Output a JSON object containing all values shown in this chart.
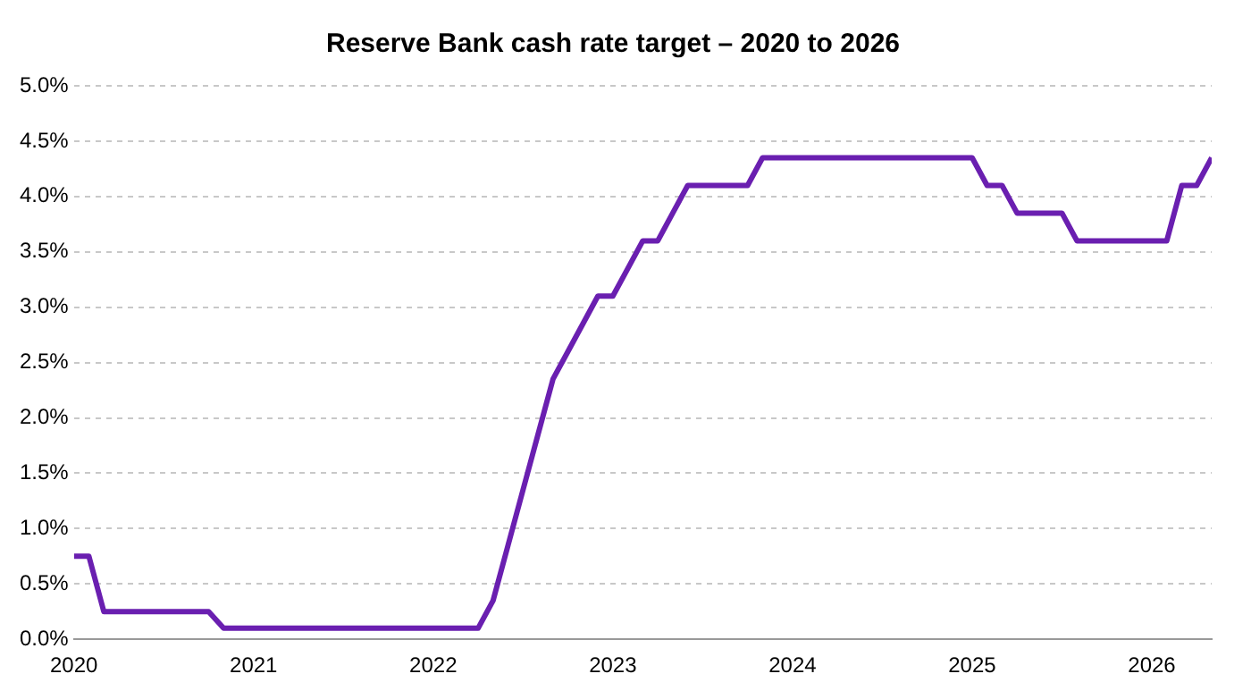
{
  "chart_data": {
    "type": "line",
    "title": "Reserve Bank cash rate target – 2020 to 2026",
    "x": [
      "2020-01",
      "2020-02",
      "2020-03",
      "2020-10",
      "2020-11",
      "2022-04",
      "2022-05",
      "2022-06",
      "2022-07",
      "2022-08",
      "2022-09",
      "2022-10",
      "2022-11",
      "2022-12",
      "2023-01",
      "2023-02",
      "2023-03",
      "2023-04",
      "2023-05",
      "2023-06",
      "2023-10",
      "2023-11",
      "2025-01",
      "2025-02",
      "2025-03",
      "2025-04",
      "2025-07",
      "2025-08",
      "2026-02",
      "2026-03",
      "2026-04",
      "2026-05"
    ],
    "series": [
      {
        "color": "#6a1fb0",
        "values": [
          0.75,
          0.75,
          0.25,
          0.25,
          0.1,
          0.1,
          0.35,
          0.85,
          1.35,
          1.85,
          2.35,
          2.6,
          2.85,
          3.1,
          3.1,
          3.35,
          3.6,
          3.6,
          3.85,
          4.1,
          4.1,
          4.35,
          4.35,
          4.1,
          4.1,
          3.85,
          3.85,
          3.6,
          3.6,
          4.1,
          4.1,
          4.35
        ]
      }
    ],
    "xlim": [
      "2020",
      "2026-05"
    ],
    "xticks": [
      "2020",
      "2021",
      "2022",
      "2023",
      "2024",
      "2025",
      "2026"
    ],
    "ylim": [
      0,
      5
    ],
    "yticks": [
      {
        "value": 0,
        "label": "0.0%"
      },
      {
        "value": 0.5,
        "label": "0.5%"
      },
      {
        "value": 1,
        "label": "1.0%"
      },
      {
        "value": 1.5,
        "label": "1.5%"
      },
      {
        "value": 2,
        "label": "2.0%"
      },
      {
        "value": 2.5,
        "label": "2.5%"
      },
      {
        "value": 3,
        "label": "3.0%"
      },
      {
        "value": 3.5,
        "label": "3.5%"
      },
      {
        "value": 4,
        "label": "4.0%"
      },
      {
        "value": 4.5,
        "label": "4.5%"
      },
      {
        "value": 5,
        "label": "5.0%"
      }
    ],
    "grid": "y",
    "marker": "none",
    "line_style": "solid"
  }
}
